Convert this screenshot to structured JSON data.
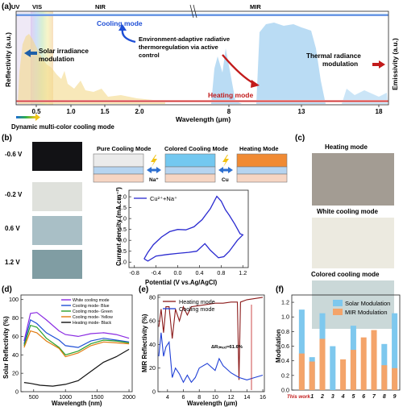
{
  "panel_a": {
    "label": "(a)",
    "top_labels": {
      "uv": "UV",
      "vis": "VIS",
      "nir": "NIR",
      "mir": "MIR"
    },
    "y_left": "Reflectivity (a.u.)",
    "y_right": "Emissivity (a.u.)",
    "x_label": "Wavelength (μm)",
    "x_ticks": [
      "0.5",
      "1.0",
      "1.5",
      "2.0",
      "8",
      "13",
      "18"
    ],
    "cooling_mode": "Cooling mode",
    "heating_mode": "Heating mode",
    "solar_mod": [
      "Solar irradiance",
      "modulation"
    ],
    "env_text": [
      "Environment-adaptive radiative",
      "thermoregulation via active",
      "control"
    ],
    "thermal_mod": [
      "Thermal radiance",
      "modulation"
    ],
    "dyn_text": "Dynamic multi-color cooling mode"
  },
  "panel_b": {
    "label": "(b)",
    "voltages": [
      "-0.6 V",
      "-0.2 V",
      "0.6 V",
      "1.2 V"
    ],
    "swatch_colors": [
      "#121215",
      "#dfe1dc",
      "#a9bfc6",
      "#809da3"
    ],
    "modes": [
      "Pure Cooling Mode",
      "Colored Cooling Mode",
      "Heating Mode"
    ],
    "ion1": "Na⁺",
    "ion2": "Cu",
    "legend": "Cu²⁺+Na⁺",
    "ylabel": "Current density (mA.cm⁻²)",
    "xlabel": "Potential (V vs.Ag/AgCl)",
    "xticks": [
      "-0.8",
      "-0.4",
      "0.0",
      "0.4",
      "0.8",
      "1.2"
    ],
    "yticks": [
      "2.0",
      "1.5",
      "1.0",
      "0.5",
      "0.0",
      "-0.5",
      "-1.0"
    ]
  },
  "panel_c": {
    "label": "(c)",
    "captions": [
      "Heating mode",
      "White cooling mode",
      "Colored cooling mode"
    ],
    "colors": [
      "#a39c93",
      "#eceae0",
      "#cad8d8"
    ]
  },
  "panel_d": {
    "label": "(d)",
    "ylabel": "Solar Reflectivity (%)",
    "xlabel": "Wavelength (nm)",
    "xticks": [
      "500",
      "1000",
      "1500",
      "2000"
    ],
    "yticks": [
      "100",
      "80",
      "60",
      "40",
      "20",
      "0"
    ],
    "legend": [
      {
        "name": "White cooling mode",
        "color": "#8a2be2"
      },
      {
        "name": "Cooling mode- Blue",
        "color": "#1f4fd6"
      },
      {
        "name": "Cooling mode- Green",
        "color": "#2aa02a"
      },
      {
        "name": "Cooling mode- Yellow",
        "color": "#e07b10"
      },
      {
        "name": "Heating mode- Black",
        "color": "#111111"
      }
    ]
  },
  "panel_e": {
    "label": "(e)",
    "ylabel": "MIR Reflectivity (%)",
    "xlabel": "Wavelength (μm)",
    "xticks": [
      "4",
      "6",
      "8",
      "10",
      "12",
      "14",
      "16"
    ],
    "yticks": [
      "80",
      "60",
      "40",
      "20",
      "0"
    ],
    "legend": [
      {
        "name": "Heating mode",
        "color": "#8b1a1a"
      },
      {
        "name": "Cooling mode",
        "color": "#1f3fd6"
      }
    ],
    "annotation": "ΔR₍ₘₐₓ₎=61.6%"
  },
  "panel_f": {
    "label": "(f)",
    "ylabel": "Modulation",
    "yticks": [
      "1.2",
      "1.0",
      "0.8",
      "0.6",
      "0.4",
      "0.2",
      "0.0"
    ],
    "categories": [
      "This work",
      "1",
      "2",
      "3",
      "4",
      "5",
      "6",
      "7",
      "8",
      "9"
    ],
    "legend": [
      {
        "name": "Solar Modulation",
        "color": "#7ec8ee"
      },
      {
        "name": "MIR Modulation",
        "color": "#f4a46a"
      }
    ]
  },
  "chart_data": [
    {
      "type": "bar",
      "panel": "(f)",
      "categories": [
        "This work",
        "1",
        "2",
        "3",
        "4",
        "5",
        "6",
        "7",
        "8",
        "9"
      ],
      "series": [
        {
          "name": "Solar Modulation",
          "values": [
            1.1,
            0.45,
            1.05,
            0.6,
            0.0,
            0.88,
            0.0,
            0.0,
            0.63,
            1.05
          ]
        },
        {
          "name": "MIR Modulation",
          "values": [
            0.5,
            0.39,
            0.7,
            0.0,
            0.42,
            0.55,
            0.72,
            0.82,
            0.34,
            0.3
          ]
        }
      ],
      "ylabel": "Modulation",
      "ylim": [
        0,
        1.3
      ]
    }
  ]
}
